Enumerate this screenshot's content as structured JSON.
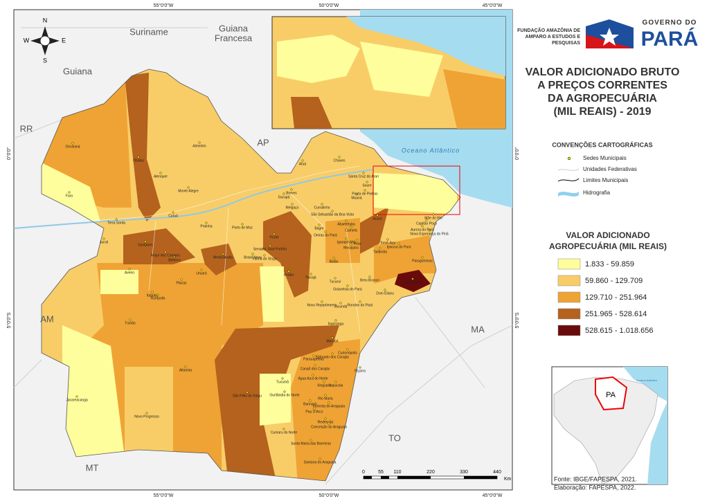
{
  "map": {
    "coords_top": [
      "55°0'0\"W",
      "50°0'0\"W",
      "45°0'0\"W"
    ],
    "coords_side": [
      "0°0'0\"",
      "5°0'0\"S"
    ],
    "neighbors": [
      "Suriname",
      "Guiana",
      "Francesa",
      "Guiana",
      "RR",
      "AP",
      "AM",
      "MA",
      "TO",
      "MT"
    ],
    "ocean": "Oceano Atlântico",
    "compass": [
      "N",
      "S",
      "E",
      "W"
    ],
    "municipalities": [
      "Oriximiná",
      "Óbidos",
      "Faro",
      "Alenquer",
      "Monte Alegre",
      "Almeirim",
      "Terra Santa",
      "Juruti",
      "Santarém",
      "Prainha",
      "Porto de Moz",
      "Portel",
      "Breves",
      "Afuá",
      "Chaves",
      "Melgaço",
      "Medicilândia",
      "Uruará",
      "Placas",
      "Aveiro",
      "Itaituba",
      "Trairão",
      "Jacareacanga",
      "Novo Progresso",
      "Altamira",
      "São Félix do Xingu",
      "Ourilândia do Norte",
      "Tucumã",
      "Cumaru do Norte",
      "Marabá",
      "Paragominas",
      "Ulianópolis",
      "Tailândia",
      "Moju",
      "Pacajá",
      "Anapu",
      "Tucuruí",
      "Breu Branco",
      "Dom Eliseu",
      "Rondon do Pará",
      "Redenção",
      "Santana do Araguaia",
      "Santa Maria das Barreiras",
      "Conceição do Araguaia",
      "Xinguara",
      "Parauapebas",
      "Canaã dos Carajás",
      "Belterra",
      "Mojuí dos Campos",
      "Rurópolis",
      "Brasil Novo",
      "Vitória do Xingu",
      "Senador José Porfírio",
      "Goianésia do Pará",
      "Jacundá",
      "Novo Repartimento",
      "Itupiranga",
      "Eldorado dos Carajás",
      "Água Azul do Norte",
      "Sapucaia",
      "Rio Maria",
      "Bannach",
      "Pau D'Arco",
      "Floresta do Araguaia",
      "Curionópolis",
      "Piçarra",
      "Cametá",
      "Gurupá",
      "Curralinho",
      "Muaná",
      "Soure",
      "Ponta de Pedras",
      "Bagre",
      "Oeiras do Pará",
      "Igarapé-Miri",
      "Abaetetuba",
      "Baião",
      "Mocajuba",
      "Tomé-Açu",
      "Acará",
      "Capitão Poço",
      "Ipixuna do Pará",
      "Nova Esperança do Piriá",
      "Aurora do Pará",
      "Mãe do Rio",
      "Curuá",
      "Santa Cruz do Arari",
      "São Sebastião da Boa Vista"
    ],
    "scale": {
      "labels": [
        "0",
        "55",
        "110",
        "220",
        "330",
        "440"
      ],
      "unit": "Km"
    }
  },
  "header": {
    "org": [
      "FUNDAÇÃO AMAZÔNIA DE",
      "AMPARO A ESTUDOS E",
      "PESQUISAS"
    ],
    "gov": "GOVERNO DO",
    "state": "PARÁ"
  },
  "title": [
    "VALOR ADICIONADO BRUTO",
    "A PREÇOS CORRENTES",
    "DA AGROPECUÁRIA",
    "(MIL REAIS) - 2019"
  ],
  "conventions": {
    "title": "CONVENÇÕES CARTOGRÁFICAS",
    "items": [
      "Sedes Municipais",
      "Unidades Federativas",
      "Limites Municipais",
      "Hidrografia"
    ]
  },
  "legend": {
    "title": [
      "VALOR ADICIONADO",
      "AGROPECUÁRIA (MIL REAIS)"
    ],
    "classes": [
      {
        "label": "1.833 - 59.859",
        "color": "#fefe9c"
      },
      {
        "label": "59.860 - 129.709",
        "color": "#f8cd68"
      },
      {
        "label": "129.710 - 251.964",
        "color": "#efa334"
      },
      {
        "label": "251.965 - 528.614",
        "color": "#b4621d"
      },
      {
        "label": "528.615 - 1.018.656",
        "color": "#6a0b0b"
      }
    ]
  },
  "inset": {
    "label": "PA",
    "ocean": "Oceano Atlântico"
  },
  "source": [
    "Fonte: IBGE/FAPESPA, 2021.",
    "Elaboração: FAPESPA, 2022."
  ]
}
